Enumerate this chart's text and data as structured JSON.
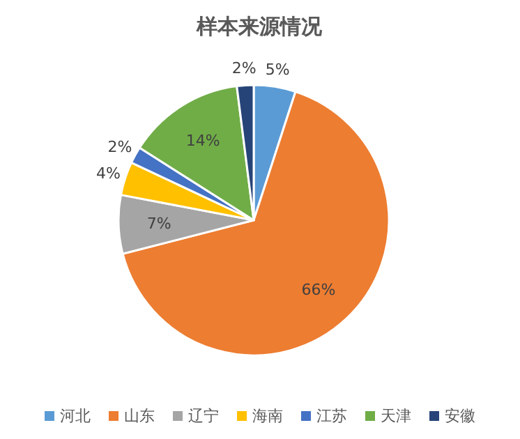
{
  "chart_data": {
    "type": "pie",
    "title": "样本来源情况",
    "categories": [
      "河北",
      "山东",
      "辽宁",
      "海南",
      "江苏",
      "天津",
      "安徽"
    ],
    "values": [
      5,
      66,
      7,
      4,
      2,
      14,
      2
    ],
    "value_labels": [
      "5%",
      "66%",
      "7%",
      "4%",
      "2%",
      "14%",
      "2%"
    ],
    "colors": [
      "#5b9bd5",
      "#ed7d31",
      "#a5a5a5",
      "#ffc000",
      "#4472c4",
      "#70ad47",
      "#264478"
    ],
    "legend": "bottom"
  }
}
